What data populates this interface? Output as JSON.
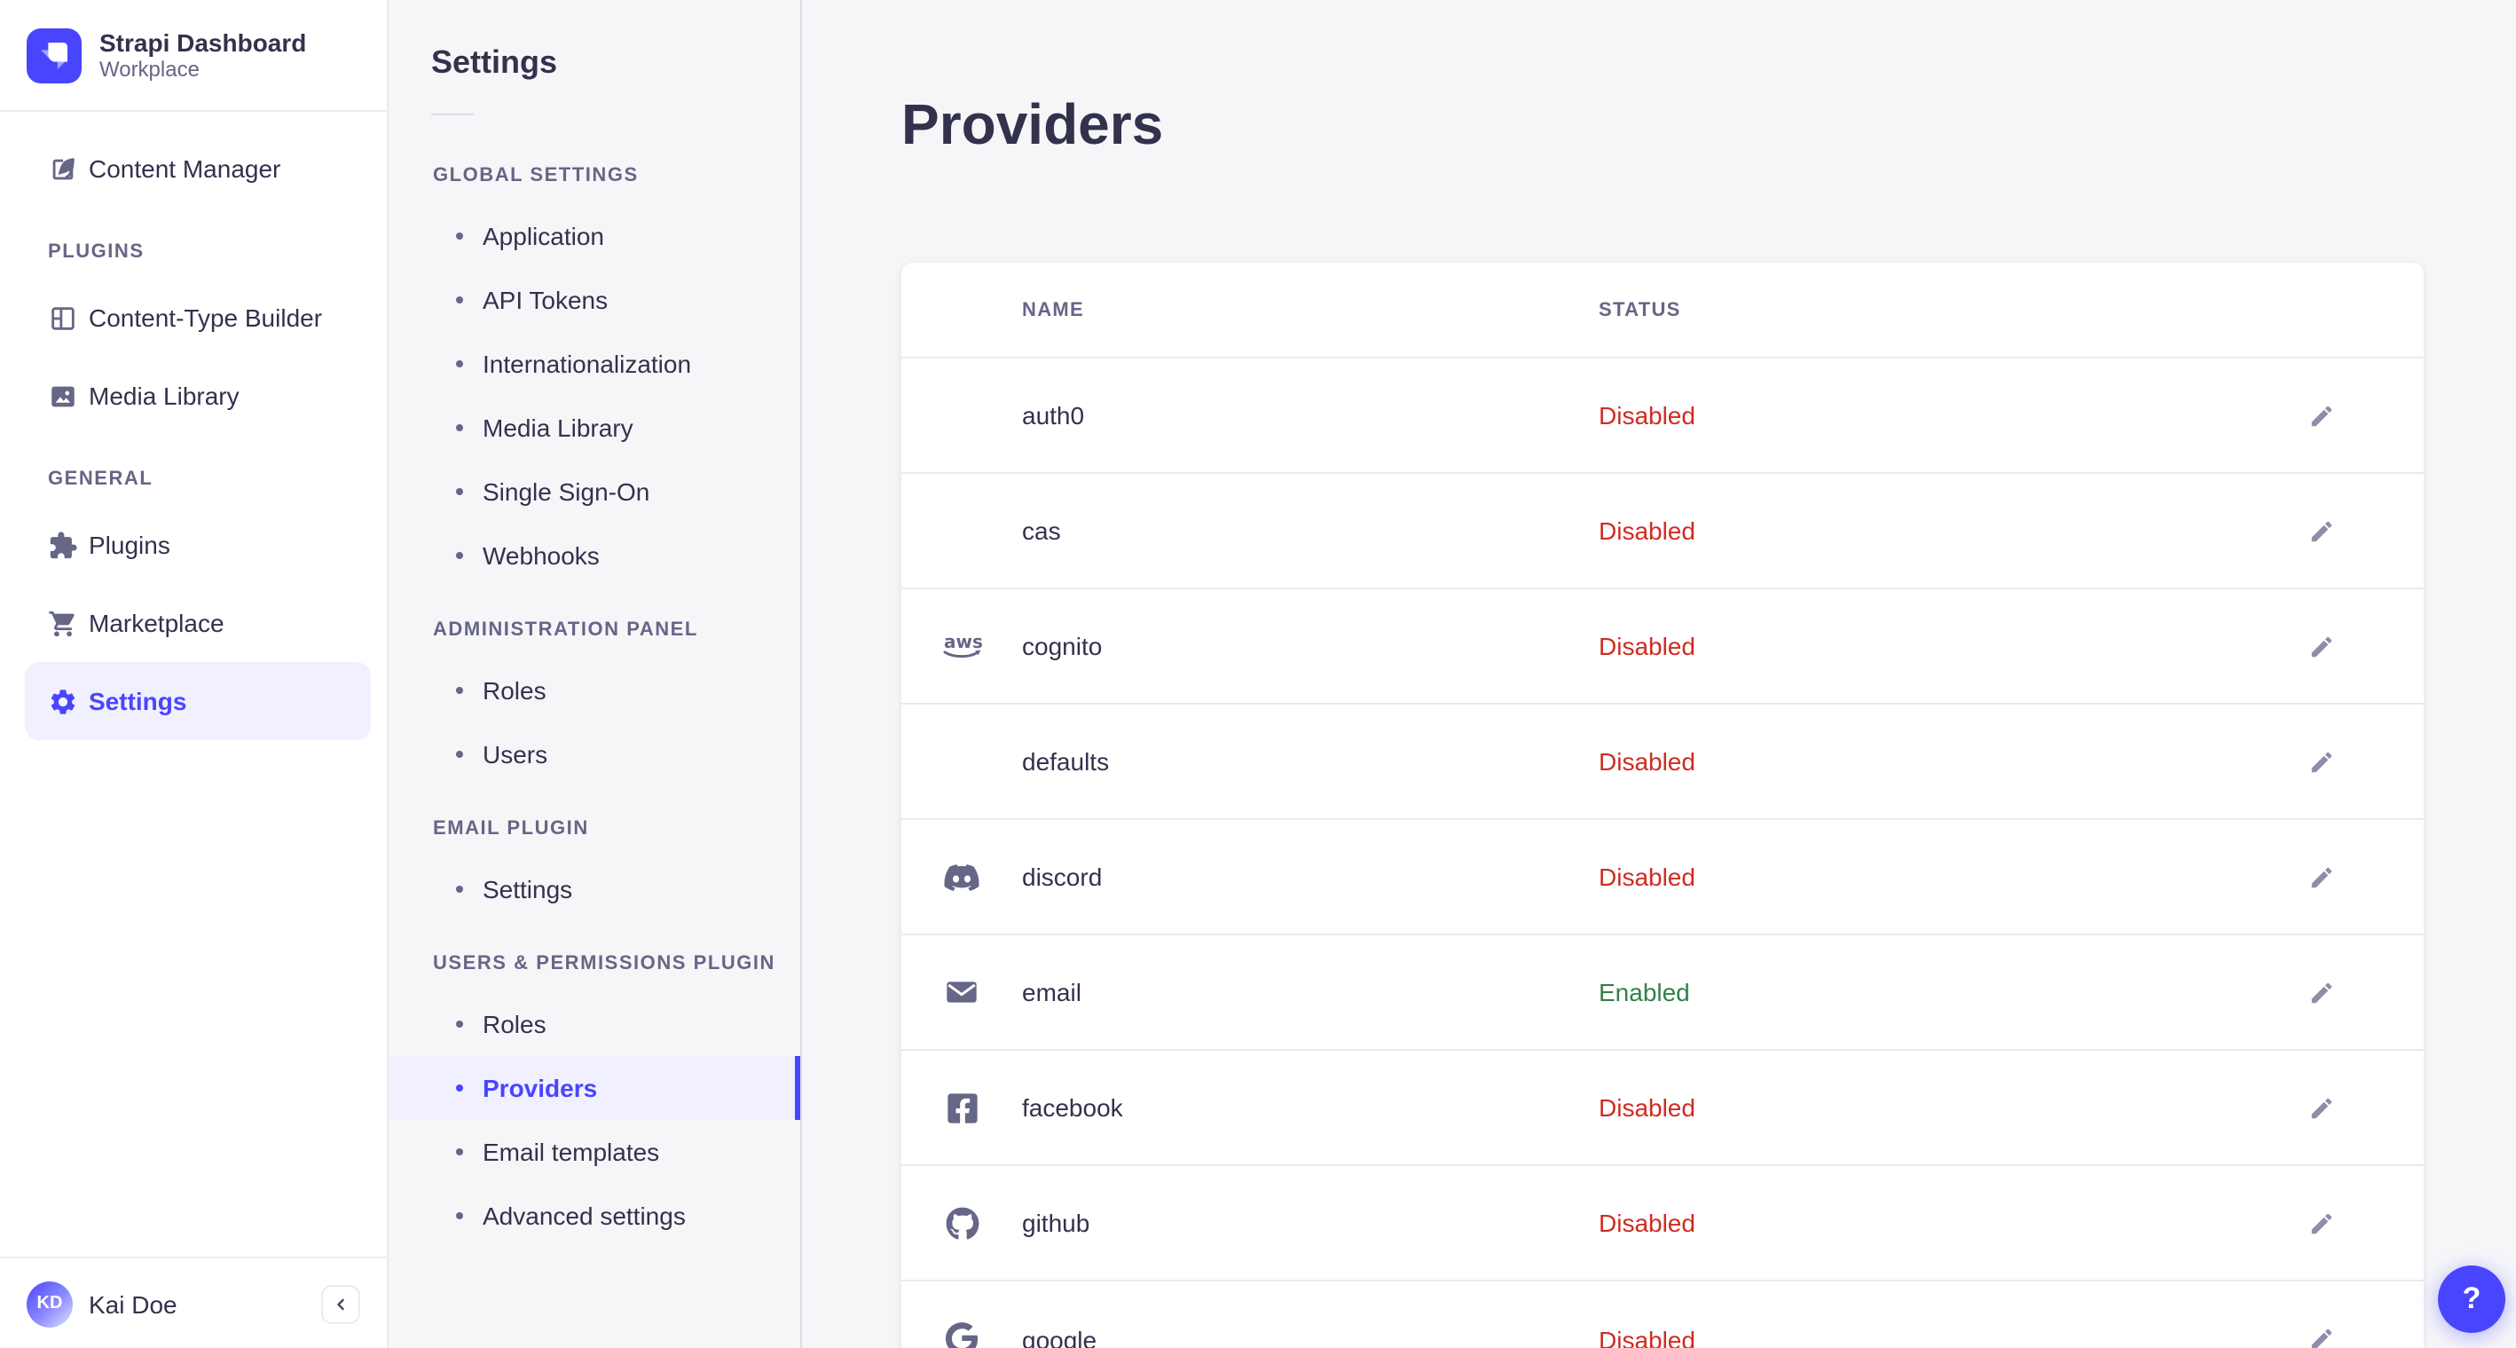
{
  "brand": {
    "name": "Strapi Dashboard",
    "workspace": "Workplace"
  },
  "colors": {
    "accent": "#4945ff",
    "success": "#328048",
    "danger": "#d02b20",
    "text": "#32324d",
    "muted": "#666687",
    "active_bg": "#f0f0ff"
  },
  "sidebar": {
    "top_item": {
      "label": "Content Manager",
      "icon": "content-manager-icon"
    },
    "sections": [
      {
        "label": "PLUGINS",
        "items": [
          {
            "label": "Content-Type Builder",
            "icon": "content-type-builder-icon"
          },
          {
            "label": "Media Library",
            "icon": "media-library-icon"
          }
        ]
      },
      {
        "label": "GENERAL",
        "items": [
          {
            "label": "Plugins",
            "icon": "puzzle-icon"
          },
          {
            "label": "Marketplace",
            "icon": "cart-icon"
          },
          {
            "label": "Settings",
            "icon": "gear-icon",
            "active": true
          }
        ]
      }
    ],
    "user": {
      "initials": "KD",
      "name": "Kai Doe"
    },
    "collapse": {
      "icon": "chevron-left-icon"
    }
  },
  "subnav": {
    "title": "Settings",
    "sections": [
      {
        "label": "GLOBAL SETTINGS",
        "items": [
          {
            "label": "Application"
          },
          {
            "label": "API Tokens"
          },
          {
            "label": "Internationalization"
          },
          {
            "label": "Media Library"
          },
          {
            "label": "Single Sign-On"
          },
          {
            "label": "Webhooks"
          }
        ]
      },
      {
        "label": "ADMINISTRATION PANEL",
        "items": [
          {
            "label": "Roles"
          },
          {
            "label": "Users"
          }
        ]
      },
      {
        "label": "EMAIL PLUGIN",
        "items": [
          {
            "label": "Settings"
          }
        ]
      },
      {
        "label": "USERS & PERMISSIONS PLUGIN",
        "items": [
          {
            "label": "Roles"
          },
          {
            "label": "Providers",
            "active": true
          },
          {
            "label": "Email templates"
          },
          {
            "label": "Advanced settings"
          }
        ]
      }
    ]
  },
  "main": {
    "title": "Providers",
    "table": {
      "columns": [
        "NAME",
        "STATUS"
      ],
      "rows": [
        {
          "name": "auth0",
          "icon": null,
          "status": "Disabled"
        },
        {
          "name": "cas",
          "icon": null,
          "status": "Disabled"
        },
        {
          "name": "cognito",
          "icon": "aws-icon",
          "status": "Disabled"
        },
        {
          "name": "defaults",
          "icon": null,
          "status": "Disabled"
        },
        {
          "name": "discord",
          "icon": "discord-icon",
          "status": "Disabled"
        },
        {
          "name": "email",
          "icon": "email-icon",
          "status": "Enabled"
        },
        {
          "name": "facebook",
          "icon": "facebook-icon",
          "status": "Disabled"
        },
        {
          "name": "github",
          "icon": "github-icon",
          "status": "Disabled"
        },
        {
          "name": "google",
          "icon": "google-icon",
          "status": "Disabled"
        }
      ]
    }
  },
  "help": {
    "label": "?"
  }
}
